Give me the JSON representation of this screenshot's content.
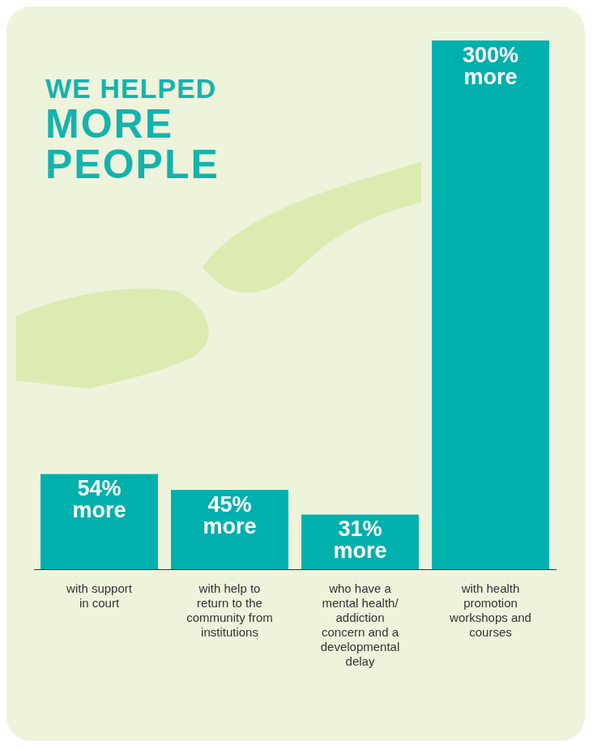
{
  "chart_data": {
    "type": "bar",
    "title": [
      "WE HELPED",
      "MORE",
      "PEOPLE"
    ],
    "categories": [
      "with support in court",
      "with help to return to the community from institutions",
      "who have a mental health/addiction concern and a developmental delay",
      "with health promotion workshops and courses"
    ],
    "values": [
      54,
      45,
      31,
      300
    ],
    "value_labels": [
      "54% more",
      "45% more",
      "31% more",
      "300% more"
    ],
    "color": "#00b0ad",
    "ylim": [
      0,
      300
    ],
    "grid": false,
    "data_labels": true,
    "tick_labels": "x"
  }
}
